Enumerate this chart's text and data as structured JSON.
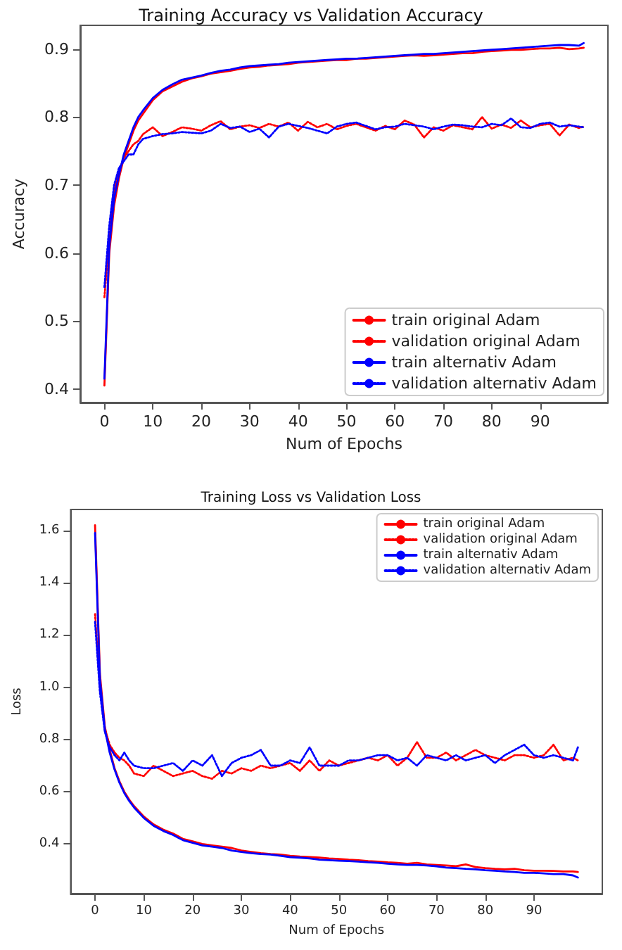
{
  "chart_data": [
    {
      "type": "line",
      "title": "Training Accuracy vs Validation Accuracy",
      "xlabel": "Num of Epochs",
      "ylabel": "Accuracy",
      "xlim": [
        -5,
        104
      ],
      "xticks": [
        0,
        10,
        20,
        30,
        40,
        50,
        60,
        70,
        80,
        90
      ],
      "ylim": [
        0.38,
        0.935
      ],
      "yticks": [
        0.4,
        0.5,
        0.6,
        0.7,
        0.8,
        0.9
      ],
      "grid": false,
      "legend": "bottom right",
      "x": [
        0,
        1,
        2,
        3,
        4,
        5,
        6,
        7,
        8,
        10,
        12,
        14,
        16,
        18,
        20,
        22,
        24,
        26,
        28,
        30,
        32,
        34,
        36,
        38,
        40,
        42,
        44,
        46,
        48,
        50,
        52,
        54,
        56,
        58,
        60,
        62,
        64,
        66,
        68,
        70,
        72,
        74,
        76,
        78,
        80,
        82,
        84,
        86,
        88,
        90,
        92,
        94,
        96,
        98,
        99
      ],
      "series": [
        {
          "name": "train original Adam",
          "color": "#ff0000",
          "line_style": "solid",
          "values": [
            0.405,
            0.6,
            0.67,
            0.71,
            0.74,
            0.76,
            0.78,
            0.795,
            0.805,
            0.825,
            0.838,
            0.845,
            0.852,
            0.857,
            0.86,
            0.864,
            0.866,
            0.868,
            0.871,
            0.873,
            0.874,
            0.876,
            0.877,
            0.878,
            0.88,
            0.881,
            0.882,
            0.883,
            0.884,
            0.884,
            0.886,
            0.886,
            0.887,
            0.888,
            0.889,
            0.89,
            0.891,
            0.89,
            0.891,
            0.892,
            0.893,
            0.894,
            0.894,
            0.896,
            0.897,
            0.898,
            0.899,
            0.899,
            0.9,
            0.901,
            0.901,
            0.902,
            0.9,
            0.901,
            0.902
          ]
        },
        {
          "name": "validation original Adam",
          "color": "#ff0000",
          "line_style": "dotted",
          "values": [
            0.535,
            0.62,
            0.69,
            0.72,
            0.74,
            0.75,
            0.76,
            0.765,
            0.775,
            0.785,
            0.772,
            0.778,
            0.785,
            0.783,
            0.78,
            0.788,
            0.794,
            0.782,
            0.786,
            0.788,
            0.784,
            0.79,
            0.786,
            0.792,
            0.78,
            0.793,
            0.785,
            0.79,
            0.782,
            0.787,
            0.79,
            0.785,
            0.78,
            0.787,
            0.782,
            0.795,
            0.789,
            0.77,
            0.785,
            0.78,
            0.788,
            0.785,
            0.782,
            0.8,
            0.783,
            0.789,
            0.784,
            0.795,
            0.785,
            0.788,
            0.79,
            0.773,
            0.789,
            0.784,
            0.786
          ]
        },
        {
          "name": "train alternativ Adam",
          "color": "#0000ff",
          "line_style": "solid",
          "values": [
            0.415,
            0.61,
            0.68,
            0.715,
            0.745,
            0.765,
            0.785,
            0.8,
            0.81,
            0.828,
            0.84,
            0.848,
            0.855,
            0.858,
            0.861,
            0.865,
            0.868,
            0.87,
            0.873,
            0.875,
            0.876,
            0.877,
            0.878,
            0.88,
            0.881,
            0.882,
            0.883,
            0.884,
            0.885,
            0.886,
            0.886,
            0.887,
            0.888,
            0.889,
            0.89,
            0.891,
            0.892,
            0.893,
            0.893,
            0.894,
            0.895,
            0.896,
            0.897,
            0.898,
            0.899,
            0.9,
            0.901,
            0.902,
            0.903,
            0.904,
            0.905,
            0.906,
            0.906,
            0.905,
            0.909
          ]
        },
        {
          "name": "validation alternativ Adam",
          "color": "#0000ff",
          "line_style": "dotted",
          "values": [
            0.55,
            0.64,
            0.7,
            0.725,
            0.735,
            0.745,
            0.745,
            0.76,
            0.768,
            0.772,
            0.775,
            0.776,
            0.778,
            0.777,
            0.776,
            0.78,
            0.79,
            0.784,
            0.786,
            0.778,
            0.783,
            0.77,
            0.786,
            0.79,
            0.787,
            0.784,
            0.78,
            0.776,
            0.786,
            0.79,
            0.792,
            0.787,
            0.782,
            0.785,
            0.786,
            0.79,
            0.788,
            0.786,
            0.782,
            0.786,
            0.789,
            0.788,
            0.786,
            0.785,
            0.79,
            0.788,
            0.798,
            0.785,
            0.784,
            0.79,
            0.792,
            0.786,
            0.788,
            0.786,
            0.785
          ]
        }
      ]
    },
    {
      "type": "line",
      "title": "Training Loss vs Validation Loss",
      "xlabel": "Num of Epochs",
      "ylabel": "Loss",
      "xlim": [
        -5,
        104
      ],
      "xticks": [
        0,
        10,
        20,
        30,
        40,
        50,
        60,
        70,
        80,
        90
      ],
      "ylim": [
        0.21,
        1.68
      ],
      "yticks": [
        0.4,
        0.6,
        0.8,
        {
          "value": 1,
          "label": "1.0"
        },
        1.2,
        1.4,
        1.6
      ],
      "grid": false,
      "legend": "top right",
      "x": [
        0,
        1,
        2,
        3,
        4,
        5,
        6,
        7,
        8,
        10,
        12,
        14,
        16,
        18,
        20,
        22,
        24,
        26,
        28,
        30,
        32,
        34,
        36,
        38,
        40,
        42,
        44,
        46,
        48,
        50,
        52,
        54,
        56,
        58,
        60,
        62,
        64,
        66,
        68,
        70,
        72,
        74,
        76,
        78,
        80,
        82,
        84,
        86,
        88,
        90,
        92,
        94,
        96,
        98,
        99
      ],
      "series": [
        {
          "name": "train original Adam",
          "color": "#ff0000",
          "line_style": "solid",
          "values": [
            1.62,
            1.05,
            0.85,
            0.76,
            0.69,
            0.64,
            0.6,
            0.57,
            0.545,
            0.505,
            0.475,
            0.455,
            0.44,
            0.42,
            0.41,
            0.4,
            0.395,
            0.39,
            0.385,
            0.375,
            0.37,
            0.365,
            0.362,
            0.36,
            0.355,
            0.352,
            0.35,
            0.348,
            0.345,
            0.343,
            0.34,
            0.338,
            0.335,
            0.333,
            0.33,
            0.328,
            0.325,
            0.328,
            0.322,
            0.32,
            0.318,
            0.315,
            0.322,
            0.312,
            0.308,
            0.305,
            0.303,
            0.305,
            0.3,
            0.298,
            0.298,
            0.297,
            0.295,
            0.295,
            0.293
          ]
        },
        {
          "name": "validation original Adam",
          "color": "#ff0000",
          "line_style": "dotted",
          "values": [
            1.28,
            1.0,
            0.84,
            0.78,
            0.75,
            0.73,
            0.72,
            0.7,
            0.67,
            0.66,
            0.7,
            0.68,
            0.66,
            0.67,
            0.68,
            0.66,
            0.65,
            0.68,
            0.67,
            0.69,
            0.68,
            0.7,
            0.69,
            0.7,
            0.71,
            0.68,
            0.72,
            0.68,
            0.72,
            0.7,
            0.71,
            0.72,
            0.73,
            0.72,
            0.74,
            0.7,
            0.73,
            0.79,
            0.73,
            0.73,
            0.75,
            0.72,
            0.74,
            0.76,
            0.74,
            0.73,
            0.72,
            0.74,
            0.74,
            0.73,
            0.74,
            0.78,
            0.72,
            0.73,
            0.72
          ]
        },
        {
          "name": "train alternativ Adam",
          "color": "#0000ff",
          "line_style": "solid",
          "values": [
            1.59,
            1.03,
            0.84,
            0.75,
            0.685,
            0.635,
            0.595,
            0.565,
            0.54,
            0.5,
            0.47,
            0.45,
            0.435,
            0.415,
            0.405,
            0.395,
            0.39,
            0.385,
            0.375,
            0.37,
            0.365,
            0.362,
            0.36,
            0.355,
            0.35,
            0.348,
            0.345,
            0.34,
            0.338,
            0.336,
            0.335,
            0.333,
            0.33,
            0.328,
            0.325,
            0.322,
            0.32,
            0.32,
            0.318,
            0.315,
            0.31,
            0.308,
            0.305,
            0.303,
            0.3,
            0.298,
            0.295,
            0.293,
            0.29,
            0.29,
            0.288,
            0.285,
            0.285,
            0.28,
            0.272
          ]
        },
        {
          "name": "validation alternativ Adam",
          "color": "#0000ff",
          "line_style": "dotted",
          "values": [
            1.25,
            0.98,
            0.83,
            0.77,
            0.74,
            0.72,
            0.75,
            0.72,
            0.7,
            0.69,
            0.69,
            0.7,
            0.71,
            0.68,
            0.72,
            0.7,
            0.74,
            0.66,
            0.71,
            0.73,
            0.74,
            0.76,
            0.7,
            0.7,
            0.72,
            0.71,
            0.77,
            0.7,
            0.7,
            0.7,
            0.72,
            0.72,
            0.73,
            0.74,
            0.74,
            0.72,
            0.73,
            0.7,
            0.74,
            0.73,
            0.72,
            0.74,
            0.72,
            0.73,
            0.74,
            0.71,
            0.74,
            0.76,
            0.78,
            0.74,
            0.73,
            0.74,
            0.73,
            0.72,
            0.77
          ]
        }
      ]
    }
  ]
}
